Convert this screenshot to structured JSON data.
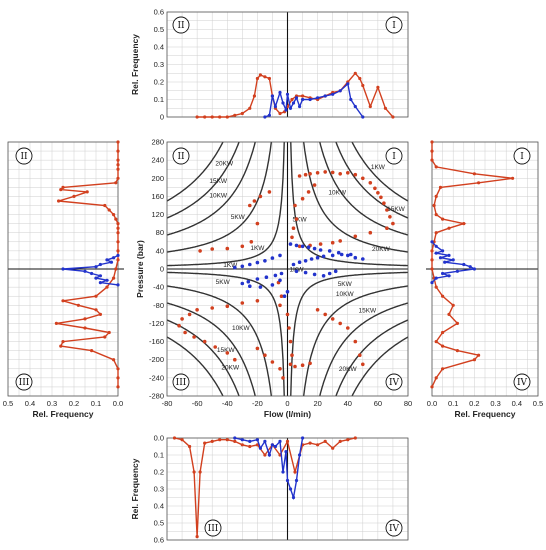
{
  "chart_data": [
    {
      "id": "main",
      "type": "scatter",
      "xlabel": "Flow (l/min)",
      "ylabel": "Pressure (bar)",
      "xlim": [
        -80,
        80
      ],
      "ylim": [
        -280,
        280
      ],
      "xticks": [
        -80,
        -60,
        -40,
        -20,
        0,
        20,
        40,
        60,
        80
      ],
      "yticks": [
        -280,
        -240,
        -200,
        -160,
        -120,
        -80,
        -40,
        0,
        40,
        80,
        120,
        160,
        200,
        240,
        280
      ],
      "quadrants": [
        "II",
        "I",
        "III",
        "IV"
      ],
      "power_levels": [
        {
          "label": "1KW",
          "kw": 1
        },
        {
          "label": "5KW",
          "kw": 5
        },
        {
          "label": "10KW",
          "kw": 10
        },
        {
          "label": "15KW",
          "kw": 15
        },
        {
          "label": "20KW",
          "kw": 20
        }
      ],
      "power_label_text": [
        "20KW",
        "15KW",
        "10KW",
        "5KW",
        "1KW",
        "1KW",
        "5KW",
        "10KW",
        "15KW",
        "20KW",
        "1KW",
        "5KW",
        "10KW",
        "15KW",
        "20KW",
        "1KW",
        "5KW",
        "10KW",
        "15KW",
        "20KW"
      ],
      "series": [
        {
          "color": "#d2401f",
          "points": [
            [
              8,
              205
            ],
            [
              12,
              208
            ],
            [
              15,
              210
            ],
            [
              20,
              212
            ],
            [
              25,
              214
            ],
            [
              30,
              213
            ],
            [
              35,
              210
            ],
            [
              40,
              212
            ],
            [
              45,
              208
            ],
            [
              50,
              200
            ],
            [
              55,
              190
            ],
            [
              58,
              178
            ],
            [
              60,
              168
            ],
            [
              62,
              158
            ],
            [
              64,
              145
            ],
            [
              66,
              130
            ],
            [
              68,
              115
            ],
            [
              70,
              100
            ],
            [
              66,
              90
            ],
            [
              55,
              80
            ],
            [
              45,
              72
            ],
            [
              35,
              62
            ],
            [
              30,
              58
            ],
            [
              22,
              55
            ],
            [
              15,
              52
            ],
            [
              8,
              50
            ],
            [
              5,
              140
            ],
            [
              10,
              155
            ],
            [
              14,
              170
            ],
            [
              18,
              185
            ],
            [
              6,
              110
            ],
            [
              4,
              90
            ],
            [
              3,
              70
            ],
            [
              -12,
              170
            ],
            [
              -18,
              160
            ],
            [
              -22,
              150
            ],
            [
              -25,
              140
            ],
            [
              -20,
              100
            ],
            [
              -24,
              60
            ],
            [
              -30,
              50
            ],
            [
              -40,
              45
            ],
            [
              -50,
              44
            ],
            [
              -58,
              40
            ],
            [
              -6,
              -30
            ],
            [
              -4,
              -60
            ],
            [
              -5,
              -80
            ],
            [
              -20,
              -70
            ],
            [
              -30,
              -75
            ],
            [
              -40,
              -82
            ],
            [
              -50,
              -86
            ],
            [
              -60,
              -90
            ],
            [
              -65,
              -100
            ],
            [
              -70,
              -110
            ],
            [
              -72,
              -125
            ],
            [
              -68,
              -140
            ],
            [
              -62,
              -150
            ],
            [
              -55,
              -160
            ],
            [
              -48,
              -172
            ],
            [
              -40,
              -185
            ],
            [
              -35,
              -200
            ],
            [
              -20,
              -175
            ],
            [
              -15,
              -190
            ],
            [
              -10,
              -205
            ],
            [
              -5,
              -220
            ],
            [
              0,
              -100
            ],
            [
              1,
              -130
            ],
            [
              2,
              -160
            ],
            [
              3,
              -190
            ],
            [
              2,
              -210
            ],
            [
              5,
              -215
            ],
            [
              10,
              -212
            ],
            [
              15,
              -208
            ],
            [
              20,
              -90
            ],
            [
              25,
              -100
            ],
            [
              30,
              -110
            ],
            [
              35,
              -120
            ],
            [
              40,
              -130
            ],
            [
              45,
              -160
            ],
            [
              48,
              -190
            ],
            [
              50,
              -210
            ],
            [
              -3,
              -240
            ]
          ]
        },
        {
          "color": "#2233cc",
          "points": [
            [
              2,
              55
            ],
            [
              6,
              52
            ],
            [
              10,
              50
            ],
            [
              14,
              48
            ],
            [
              18,
              45
            ],
            [
              22,
              42
            ],
            [
              28,
              40
            ],
            [
              34,
              36
            ],
            [
              40,
              30
            ],
            [
              45,
              25
            ],
            [
              50,
              22
            ],
            [
              -5,
              30
            ],
            [
              -10,
              24
            ],
            [
              -15,
              18
            ],
            [
              -20,
              14
            ],
            [
              -25,
              10
            ],
            [
              -30,
              6
            ],
            [
              -35,
              3
            ],
            [
              -4,
              -10
            ],
            [
              -8,
              -14
            ],
            [
              -14,
              -18
            ],
            [
              -20,
              -22
            ],
            [
              -26,
              -28
            ],
            [
              -30,
              -32
            ],
            [
              -25,
              -38
            ],
            [
              -18,
              -40
            ],
            [
              -10,
              -35
            ],
            [
              -5,
              -25
            ],
            [
              6,
              -5
            ],
            [
              12,
              -8
            ],
            [
              18,
              -12
            ],
            [
              24,
              -15
            ],
            [
              28,
              -10
            ],
            [
              32,
              -5
            ],
            [
              0,
              -50
            ],
            [
              -2,
              -60
            ],
            [
              4,
              10
            ],
            [
              8,
              15
            ],
            [
              12,
              18
            ],
            [
              16,
              22
            ],
            [
              20,
              25
            ],
            [
              24,
              28
            ],
            [
              30,
              30
            ],
            [
              36,
              32
            ],
            [
              42,
              32
            ]
          ]
        }
      ]
    },
    {
      "id": "top",
      "type": "line",
      "ylabel": "Rel. Frequency",
      "yticks": [
        0,
        0.1,
        0.2,
        0.3,
        0.4,
        0.5,
        0.6
      ],
      "ylim": [
        0,
        0.6
      ],
      "quadrants": [
        "II",
        "I"
      ],
      "series": [
        {
          "color": "#d2401f",
          "x": [
            -60,
            -55,
            -50,
            -45,
            -40,
            -35,
            -30,
            -25,
            -22,
            -20,
            -18,
            -15,
            -12,
            -10,
            -8,
            -5,
            -2,
            0,
            3,
            6,
            10,
            15,
            20,
            25,
            30,
            35,
            40,
            45,
            48,
            50,
            55,
            60,
            65,
            70
          ],
          "y": [
            0,
            0,
            0,
            0,
            0,
            0.01,
            0.02,
            0.05,
            0.12,
            0.22,
            0.24,
            0.23,
            0.22,
            0.12,
            0.05,
            0.02,
            0.03,
            0.06,
            0.1,
            0.12,
            0.12,
            0.11,
            0.1,
            0.12,
            0.14,
            0.15,
            0.2,
            0.25,
            0.22,
            0.18,
            0.06,
            0.17,
            0.05,
            0
          ]
        },
        {
          "color": "#2233cc",
          "x": [
            -15,
            -12,
            -10,
            -8,
            -5,
            -3,
            -1,
            0,
            2,
            4,
            6,
            8,
            10,
            15,
            20,
            25,
            30,
            35,
            40,
            42,
            45,
            50
          ],
          "y": [
            0,
            0.01,
            0.12,
            0.06,
            0.14,
            0.08,
            0.04,
            0.13,
            0.05,
            0.08,
            0.11,
            0.06,
            0.1,
            0.1,
            0.11,
            0.12,
            0.13,
            0.15,
            0.19,
            0.1,
            0.06,
            0
          ]
        }
      ]
    },
    {
      "id": "left",
      "type": "line",
      "xlabel": "Rel. Frequency",
      "xticks": [
        0.5,
        0.4,
        0.3,
        0.2,
        0.1,
        0.0
      ],
      "xlim": [
        0,
        0.5
      ],
      "quadrants": [
        "II",
        "III"
      ],
      "series": [
        {
          "color": "#d2401f",
          "p": [
            280,
            260,
            240,
            230,
            220,
            200,
            190,
            180,
            175,
            170,
            160,
            150,
            140,
            130,
            120,
            110,
            100,
            90,
            80,
            60,
            40,
            20,
            0,
            -20,
            -40,
            -60,
            -70,
            -80,
            -90,
            -100,
            -110,
            -120,
            -130,
            -140,
            -150,
            -160,
            -170,
            -180,
            -200,
            -220,
            -240,
            -260
          ],
          "f": [
            0,
            0,
            0,
            0,
            0,
            0,
            0.01,
            0.25,
            0.26,
            0.14,
            0.2,
            0.27,
            0.06,
            0.04,
            0.02,
            0.01,
            0,
            0,
            0,
            0,
            0,
            0,
            0.01,
            0.02,
            0.05,
            0.1,
            0.25,
            0.18,
            0.1,
            0.08,
            0.15,
            0.28,
            0.15,
            0.04,
            0.06,
            0.25,
            0.26,
            0.12,
            0.02,
            0,
            0,
            0
          ]
        },
        {
          "color": "#2233cc",
          "p": [
            30,
            25,
            20,
            15,
            10,
            5,
            0,
            -5,
            -10,
            -15,
            -20,
            -25,
            -30,
            -35
          ],
          "f": [
            0,
            0.02,
            0.05,
            0.03,
            0.08,
            0.1,
            0.25,
            0.15,
            0.12,
            0.08,
            0.1,
            0.05,
            0.08,
            0
          ]
        }
      ]
    },
    {
      "id": "right",
      "type": "line",
      "xlabel": "Rel. Frequency",
      "xticks": [
        0.0,
        0.1,
        0.2,
        0.3,
        0.4,
        0.5
      ],
      "xlim": [
        0,
        0.5
      ],
      "quadrants": [
        "I",
        "IV"
      ],
      "series": [
        {
          "color": "#d2401f",
          "p": [
            280,
            260,
            240,
            225,
            210,
            200,
            190,
            180,
            160,
            140,
            120,
            110,
            100,
            90,
            80,
            60,
            40,
            20,
            0,
            -20,
            -40,
            -60,
            -80,
            -100,
            -120,
            -140,
            -160,
            -170,
            -180,
            -190,
            -200,
            -220,
            -240,
            -260
          ],
          "f": [
            0,
            0,
            0,
            0.02,
            0.2,
            0.38,
            0.22,
            0.04,
            0.02,
            0.01,
            0.02,
            0.05,
            0.15,
            0.08,
            0.02,
            0.01,
            0,
            0,
            0,
            0.01,
            0.02,
            0.05,
            0.1,
            0.08,
            0.12,
            0.05,
            0.02,
            0.05,
            0.12,
            0.22,
            0.2,
            0.05,
            0.02,
            0
          ]
        },
        {
          "color": "#2233cc",
          "p": [
            60,
            50,
            40,
            35,
            30,
            25,
            20,
            15,
            10,
            5,
            0,
            -5,
            -10,
            -15,
            -20,
            -30
          ],
          "f": [
            0,
            0.02,
            0.05,
            0.02,
            0.08,
            0.04,
            0.1,
            0.06,
            0.15,
            0.18,
            0.2,
            0.12,
            0.05,
            0.08,
            0.02,
            0
          ]
        }
      ]
    },
    {
      "id": "bottom",
      "type": "line",
      "ylabel": "Rel. Frequency",
      "yticks": [
        0.0,
        0.1,
        0.2,
        0.3,
        0.4,
        0.5,
        0.6
      ],
      "ylim": [
        0,
        0.6
      ],
      "quadrants": [
        "III",
        "IV"
      ],
      "series": [
        {
          "color": "#d2401f",
          "x": [
            -75,
            -70,
            -65,
            -62,
            -60,
            -58,
            -55,
            -50,
            -45,
            -40,
            -35,
            -30,
            -25,
            -20,
            -15,
            -10,
            -5,
            0,
            5,
            10,
            15,
            20,
            25,
            30,
            35,
            40,
            45
          ],
          "y": [
            0,
            0.01,
            0.05,
            0.2,
            0.58,
            0.2,
            0.03,
            0.02,
            0.01,
            0.01,
            0.02,
            0.04,
            0.05,
            0.04,
            0.1,
            0.04,
            0.1,
            0.02,
            0.2,
            0.04,
            0.03,
            0.04,
            0.02,
            0.06,
            0.02,
            0.01,
            0
          ]
        },
        {
          "color": "#2233cc",
          "x": [
            -35,
            -30,
            -25,
            -20,
            -18,
            -15,
            -12,
            -10,
            -8,
            -5,
            -3,
            -1,
            0,
            2,
            4,
            6,
            8,
            10
          ],
          "y": [
            0,
            0.01,
            0.02,
            0.01,
            0.06,
            0.02,
            0.1,
            0.04,
            0.05,
            0.02,
            0.2,
            0.08,
            0.25,
            0.3,
            0.35,
            0.25,
            0.1,
            0
          ]
        }
      ]
    }
  ]
}
